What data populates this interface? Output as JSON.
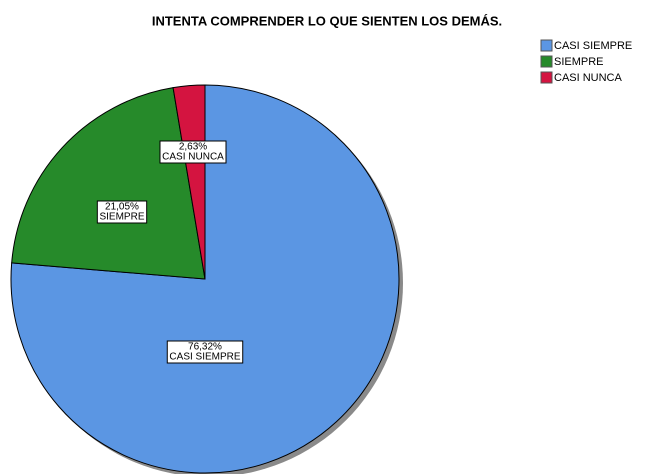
{
  "chart_data": {
    "type": "pie",
    "title": "INTENTA COMPRENDER LO QUE SIENTEN LOS DEMÁS.",
    "categories": [
      "CASI SIEMPRE",
      "SIEMPRE",
      "CASI NUNCA"
    ],
    "values": [
      76.32,
      21.05,
      2.63
    ],
    "value_labels": [
      "76,32%",
      "21,05%",
      "2,63%"
    ],
    "colors": [
      "#5b96e3",
      "#268a2a",
      "#d41440"
    ],
    "legend": "upper right"
  }
}
